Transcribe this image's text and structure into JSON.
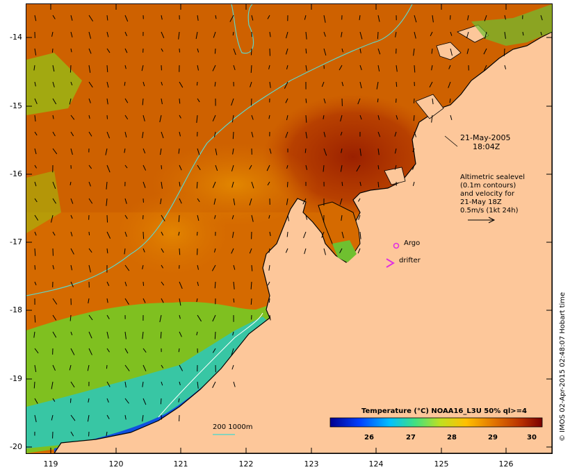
{
  "map": {
    "date": "21-May-2005",
    "time": "18:04Z",
    "altimetry_note": [
      "Altimetric sealevel",
      "(0.1m contours)",
      "and velocity for",
      "21-May 18Z",
      "0.5m/s (1kt 24h)"
    ],
    "legend_argo": "Argo",
    "legend_drifter": "drifter",
    "isobath_label": "200  1000m",
    "credit": "© IMOS 02-Apr-2015 02:48:07 Hobart time",
    "lat_ticks": [
      "-14",
      "-15",
      "-16",
      "-17",
      "-18",
      "-19",
      "-20"
    ],
    "lon_ticks": [
      "119",
      "120",
      "121",
      "122",
      "123",
      "124",
      "125",
      "126"
    ],
    "colorbar": {
      "title": "Temperature (°C) NOAA16_L3U 50% ql>=4",
      "ticks": [
        "26",
        "27",
        "28",
        "29",
        "30"
      ],
      "min": 25.1,
      "max": 30.3
    },
    "colors": {
      "land": "#fdc79a",
      "sea_warm": "#d66800",
      "sea_hot": "#a82800",
      "isobath": "#5fd6c8",
      "argo": "#e030e0"
    }
  }
}
